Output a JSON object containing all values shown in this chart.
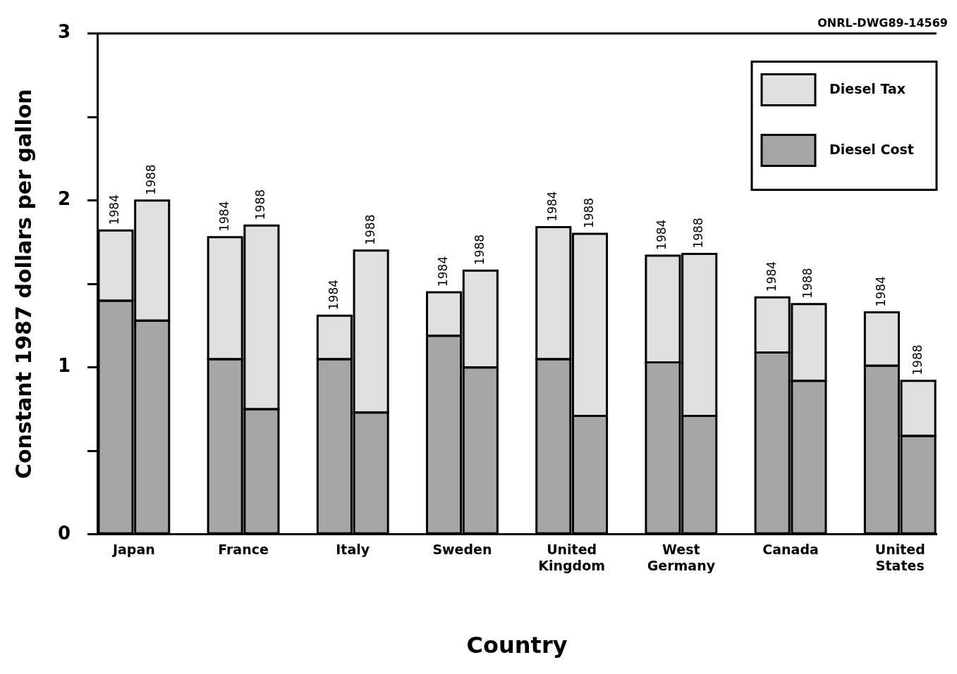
{
  "chart_data": {
    "type": "bar",
    "stacked": true,
    "xlabel": "Country",
    "ylabel": "Constant 1987 dollars per gallon",
    "categories": [
      "1984",
      "1988",
      null,
      "1984",
      "1988",
      null,
      "1984",
      "1988",
      null,
      "1984",
      "1988",
      null,
      "1984",
      "1988",
      null,
      "1984",
      "1988",
      null,
      "1984",
      "1988",
      null,
      "1984",
      "1988"
    ],
    "series": [
      {
        "name": "Diesel Cost",
        "color": "#a6a6a6",
        "values": [
          1.4,
          1.28,
          null,
          1.05,
          0.75,
          null,
          1.05,
          0.73,
          null,
          1.19,
          1.0,
          null,
          1.05,
          0.71,
          null,
          1.03,
          0.71,
          null,
          1.09,
          0.92,
          null,
          1.01,
          0.59
        ]
      },
      {
        "name": "Diesel Tax",
        "color": "#e0e0e0",
        "values": [
          0.42,
          0.72,
          null,
          0.73,
          1.1,
          null,
          0.26,
          0.97,
          null,
          0.26,
          0.58,
          null,
          0.79,
          1.09,
          null,
          0.64,
          0.97,
          null,
          0.33,
          0.46,
          null,
          0.32,
          0.33
        ]
      }
    ],
    "ylim": [
      0,
      3
    ],
    "yticks": [
      0,
      {
        "value": 0.5,
        "label": null
      },
      1,
      {
        "value": 1.5,
        "label": null
      },
      2,
      {
        "value": 2.5,
        "label": null
      },
      3
    ],
    "grid": false,
    "legend": "top right",
    "annotations": [
      "ONRL-DWG89-14569",
      "Japan",
      "France",
      "Italy",
      "Sweden",
      "United Kingdom",
      "West Germany",
      "Canada",
      "United States"
    ]
  }
}
